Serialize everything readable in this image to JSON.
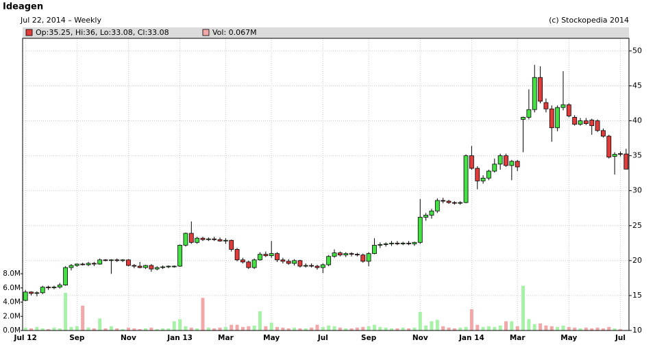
{
  "chart_data": {
    "type": "candlestick",
    "title": "Ideagen",
    "subtitle": "Jul 22, 2014 – Weekly",
    "source": "(c) Stockopedia 2014",
    "legend": {
      "price": "Op:35.25, Hi:36, Lo:33.08, Cl:33.08",
      "volume": "Vol: 0.067M"
    },
    "categories": [
      "Jul 12",
      null,
      null,
      null,
      null,
      null,
      null,
      null,
      null,
      "Sep",
      null,
      null,
      null,
      null,
      null,
      null,
      null,
      null,
      "Nov",
      null,
      null,
      null,
      null,
      null,
      null,
      null,
      null,
      "Jan 13",
      null,
      null,
      null,
      null,
      null,
      null,
      null,
      "Mar",
      null,
      null,
      null,
      null,
      null,
      null,
      null,
      "May",
      null,
      null,
      null,
      null,
      null,
      null,
      null,
      null,
      "Jul",
      null,
      null,
      null,
      null,
      null,
      null,
      null,
      "Sep",
      null,
      null,
      null,
      null,
      null,
      null,
      null,
      null,
      "Nov",
      null,
      null,
      null,
      null,
      null,
      null,
      null,
      null,
      "Jan 14",
      null,
      null,
      null,
      null,
      null,
      null,
      null,
      "Mar",
      null,
      null,
      null,
      null,
      null,
      null,
      null,
      null,
      "May",
      null,
      null,
      null,
      null,
      null,
      null,
      null,
      null,
      "Jul",
      null
    ],
    "open": [
      14.3,
      15.5,
      15.3,
      15.4,
      16.2,
      16.1,
      16.2,
      16.5,
      19.0,
      19.3,
      19.5,
      19.4,
      19.6,
      19.5,
      20.1,
      20.0,
      20.1,
      20.0,
      20.1,
      19.3,
      19.2,
      19.0,
      19.3,
      18.8,
      19.0,
      19.1,
      19.2,
      19.2,
      22.2,
      23.9,
      22.6,
      23.2,
      23.0,
      23.1,
      23.0,
      22.8,
      22.9,
      21.6,
      20.1,
      19.8,
      19.0,
      20.1,
      20.9,
      20.7,
      21.0,
      20.1,
      19.9,
      19.6,
      20.0,
      19.2,
      19.3,
      19.2,
      19.0,
      19.4,
      20.6,
      21.1,
      20.8,
      21.0,
      20.9,
      20.8,
      19.9,
      21.0,
      22.2,
      22.3,
      22.4,
      22.5,
      22.4,
      22.5,
      22.4,
      22.6,
      26.2,
      26.5,
      27.1,
      28.6,
      28.5,
      28.3,
      28.2,
      28.3,
      35.0,
      33.2,
      31.4,
      31.8,
      32.8,
      33.8,
      35.0,
      33.6,
      34.2,
      40.2,
      40.5,
      41.6,
      46.2,
      42.6,
      41.7,
      39.0,
      41.9,
      42.3,
      40.5,
      39.5,
      40.0,
      40.1,
      40.0,
      38.6,
      37.8,
      34.9,
      35.3,
      35.25
    ],
    "high": [
      15.8,
      15.6,
      15.6,
      16.4,
      16.4,
      16.4,
      16.8,
      19.2,
      19.5,
      19.6,
      19.7,
      19.8,
      19.8,
      20.3,
      20.2,
      20.2,
      20.3,
      20.2,
      20.2,
      19.5,
      19.8,
      19.4,
      19.5,
      19.2,
      19.3,
      19.3,
      19.3,
      22.3,
      24.0,
      25.6,
      23.4,
      23.4,
      23.3,
      23.4,
      23.3,
      23.2,
      23.0,
      21.8,
      20.4,
      20.0,
      20.3,
      21.2,
      21.3,
      22.8,
      21.2,
      20.4,
      20.2,
      20.2,
      20.1,
      19.6,
      19.6,
      19.4,
      19.6,
      20.8,
      21.6,
      21.3,
      21.2,
      21.2,
      21.1,
      21.0,
      21.2,
      23.2,
      22.6,
      22.6,
      22.8,
      22.8,
      22.7,
      22.8,
      22.7,
      28.8,
      26.8,
      27.4,
      28.9,
      29.0,
      28.7,
      28.5,
      28.5,
      35.2,
      36.4,
      33.5,
      32.2,
      33.0,
      34.6,
      35.3,
      35.3,
      34.4,
      34.4,
      40.6,
      44.5,
      48.0,
      47.8,
      43.2,
      42.2,
      42.2,
      47.1,
      42.5,
      40.8,
      40.4,
      40.4,
      40.3,
      40.2,
      38.9,
      38.0,
      35.5,
      35.6,
      36
    ],
    "low": [
      14.2,
      15.0,
      14.9,
      15.2,
      15.8,
      15.9,
      16.0,
      16.4,
      18.6,
      19.1,
      19.3,
      19.2,
      19.2,
      19.4,
      19.9,
      18.1,
      19.8,
      19.8,
      19.2,
      18.9,
      18.9,
      18.8,
      18.4,
      18.6,
      18.8,
      18.9,
      19.0,
      19.1,
      22.0,
      22.4,
      22.4,
      22.8,
      22.8,
      22.8,
      22.7,
      22.4,
      21.3,
      19.9,
      19.6,
      18.8,
      18.8,
      20.0,
      20.5,
      20.4,
      19.8,
      19.6,
      19.4,
      19.3,
      19.0,
      19.0,
      19.0,
      18.7,
      18.2,
      19.2,
      20.4,
      20.6,
      20.5,
      20.6,
      20.6,
      19.7,
      19.2,
      20.9,
      21.8,
      22.0,
      22.1,
      22.2,
      22.2,
      22.2,
      22.1,
      22.4,
      25.7,
      26.0,
      26.8,
      28.2,
      28.1,
      28.0,
      28.0,
      28.2,
      33.0,
      30.2,
      31.0,
      31.5,
      32.6,
      33.0,
      33.4,
      31.5,
      32.8,
      35.5,
      40.2,
      41.2,
      42.5,
      41.2,
      37.0,
      38.5,
      41.5,
      40.5,
      39.3,
      39.3,
      39.4,
      38.0,
      38.4,
      37.6,
      34.6,
      32.3,
      34.9,
      33.08
    ],
    "close": [
      15.5,
      15.3,
      15.4,
      16.2,
      16.1,
      16.2,
      16.5,
      19.0,
      19.3,
      19.5,
      19.4,
      19.6,
      19.5,
      20.1,
      20.0,
      20.1,
      20.0,
      20.1,
      19.3,
      19.2,
      19.0,
      19.3,
      18.8,
      19.0,
      19.1,
      19.2,
      19.2,
      22.2,
      23.9,
      22.6,
      23.2,
      23.0,
      23.1,
      23.0,
      22.8,
      22.9,
      21.6,
      20.1,
      19.8,
      19.0,
      20.1,
      20.9,
      20.7,
      21.0,
      20.1,
      19.9,
      19.6,
      20.0,
      19.2,
      19.3,
      19.2,
      19.0,
      19.4,
      20.6,
      21.1,
      20.8,
      21.0,
      20.9,
      20.8,
      19.9,
      21.0,
      22.2,
      22.3,
      22.4,
      22.5,
      22.4,
      22.5,
      22.4,
      22.6,
      26.2,
      26.5,
      27.1,
      28.6,
      28.5,
      28.3,
      28.2,
      28.3,
      35.0,
      33.2,
      31.4,
      31.8,
      32.8,
      33.8,
      35.0,
      33.6,
      34.2,
      33.4,
      40.5,
      41.6,
      46.2,
      42.8,
      41.7,
      39.0,
      41.9,
      42.3,
      40.7,
      39.5,
      40.0,
      39.6,
      39.3,
      38.6,
      37.8,
      34.8,
      35.2,
      35.2,
      33.08
    ],
    "volume": [
      0.4,
      0.3,
      0.5,
      0.3,
      0.2,
      0.4,
      0.3,
      5.3,
      0.5,
      0.6,
      3.5,
      0.4,
      0.3,
      1.7,
      0.3,
      0.6,
      0.3,
      0.2,
      0.4,
      0.3,
      0.2,
      0.3,
      0.4,
      0.2,
      0.3,
      0.3,
      1.3,
      1.6,
      0.6,
      0.4,
      0.3,
      4.6,
      0.4,
      0.3,
      0.4,
      0.5,
      0.8,
      0.8,
      0.5,
      0.6,
      0.7,
      2.7,
      0.6,
      1.1,
      0.5,
      0.4,
      0.3,
      0.4,
      0.3,
      0.3,
      0.4,
      0.8,
      0.5,
      0.7,
      0.6,
      0.4,
      0.3,
      0.3,
      0.4,
      0.5,
      0.6,
      0.8,
      0.5,
      0.4,
      0.3,
      0.3,
      0.4,
      0.3,
      0.4,
      2.6,
      0.7,
      1.3,
      1.5,
      0.6,
      0.4,
      0.3,
      0.4,
      0.5,
      3.0,
      0.8,
      0.5,
      0.6,
      0.5,
      0.7,
      1.3,
      1.3,
      0.6,
      6.3,
      1.6,
      0.9,
      1.0,
      0.7,
      0.6,
      0.5,
      0.7,
      0.5,
      0.4,
      0.3,
      0.4,
      0.3,
      0.4,
      0.3,
      0.5,
      0.3,
      0.2,
      0.067
    ],
    "up_color": "#44e044",
    "down_color": "#e03c3c",
    "volume_up_color": "#a8f2a8",
    "volume_down_color": "#f2a8a8",
    "ylim": [
      10,
      51.8
    ],
    "yticks": [
      10,
      15,
      20,
      25,
      30,
      35,
      40,
      45,
      50
    ],
    "y2lim": [
      0,
      41.2
    ],
    "y2ticks": [
      {
        "value": 0,
        "label": "0.0M"
      },
      {
        "value": 2,
        "label": "2.0M"
      },
      {
        "value": 4,
        "label": "4.0M"
      },
      {
        "value": 6,
        "label": "6.0M"
      },
      {
        "value": 8,
        "label": "8.0M"
      }
    ],
    "grid": true
  }
}
